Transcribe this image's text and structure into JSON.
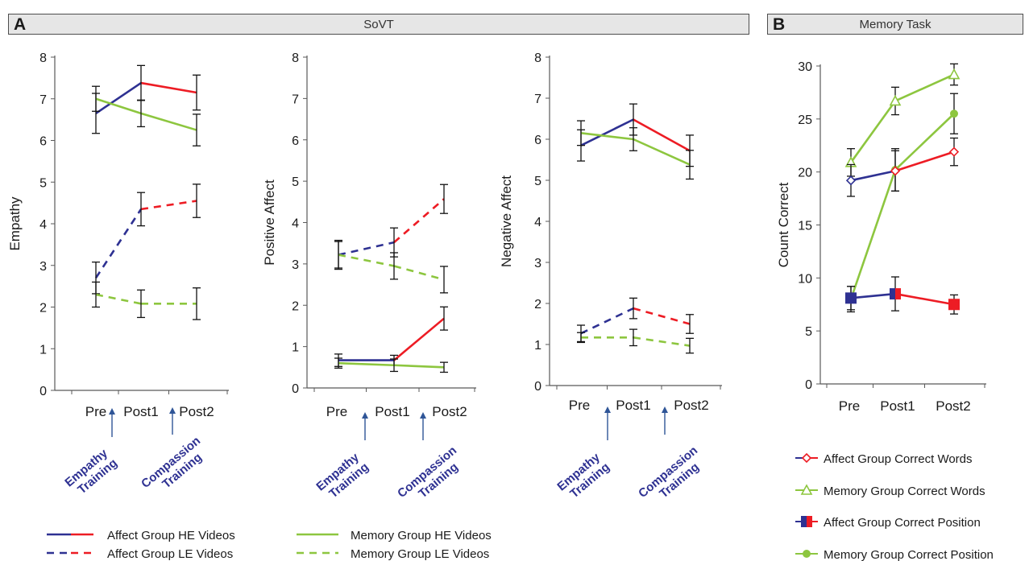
{
  "panels": {
    "a": {
      "letter": "A",
      "title": "SoVT"
    },
    "b": {
      "letter": "B",
      "title": "Memory Task"
    }
  },
  "training_labels": {
    "empathy": [
      "Empathy",
      "Training"
    ],
    "compassion": [
      "Compassion",
      "Training"
    ]
  },
  "colors": {
    "affect_pre": "#2e3192",
    "affect_post": "#ed1c24",
    "memory": "#8dc63f",
    "training_text": "#2e3192",
    "arrow": "#2f5597"
  },
  "chart_data": [
    {
      "id": "empathy",
      "type": "line",
      "ylabel": "Empathy",
      "ylim": [
        0,
        8
      ],
      "yticks": [
        0,
        1,
        2,
        3,
        4,
        5,
        6,
        7,
        8
      ],
      "categories": [
        "Pre",
        "Post1",
        "Post2"
      ],
      "series": [
        {
          "name": "Affect Group HE Videos",
          "values": [
            6.65,
            7.38,
            7.15
          ],
          "errors": [
            0.48,
            0.42,
            0.42
          ],
          "style": "solid",
          "group": "affect"
        },
        {
          "name": "Memory Group HE Videos",
          "values": [
            7.0,
            6.65,
            6.25
          ],
          "errors": [
            0.3,
            0.32,
            0.38
          ],
          "style": "solid",
          "group": "memory"
        },
        {
          "name": "Affect Group LE Videos",
          "values": [
            2.7,
            4.35,
            4.55
          ],
          "errors": [
            0.38,
            0.4,
            0.4
          ],
          "style": "dashed",
          "group": "affect"
        },
        {
          "name": "Memory Group LE Videos",
          "values": [
            2.3,
            2.08,
            2.08
          ],
          "errors": [
            0.3,
            0.33,
            0.38
          ],
          "style": "dashed",
          "group": "memory"
        }
      ]
    },
    {
      "id": "positive",
      "type": "line",
      "ylabel": "Positive Affect",
      "ylim": [
        0,
        8
      ],
      "yticks": [
        0,
        1,
        2,
        3,
        4,
        5,
        6,
        7,
        8
      ],
      "categories": [
        "Pre",
        "Post1",
        "Post2"
      ],
      "series": [
        {
          "name": "Affect Group LE Videos",
          "values": [
            3.22,
            3.52,
            4.57
          ],
          "errors": [
            0.35,
            0.35,
            0.35
          ],
          "style": "dashed",
          "group": "affect"
        },
        {
          "name": "Memory Group LE Videos",
          "values": [
            3.22,
            2.95,
            2.62
          ],
          "errors": [
            0.32,
            0.32,
            0.32
          ],
          "style": "dashed",
          "group": "memory"
        },
        {
          "name": "Affect Group HE Videos",
          "values": [
            0.67,
            0.67,
            1.68
          ],
          "errors": [
            0.15,
            0.12,
            0.28
          ],
          "style": "solid",
          "group": "affect"
        },
        {
          "name": "Memory Group HE Videos",
          "values": [
            0.6,
            0.55,
            0.5
          ],
          "errors": [
            0.12,
            0.15,
            0.12
          ],
          "style": "solid",
          "group": "memory"
        }
      ]
    },
    {
      "id": "negative",
      "type": "line",
      "ylabel": "Negative Affect",
      "ylim": [
        0,
        8
      ],
      "yticks": [
        0,
        1,
        2,
        3,
        4,
        5,
        6,
        7,
        8
      ],
      "categories": [
        "Pre",
        "Post1",
        "Post2"
      ],
      "series": [
        {
          "name": "Affect Group HE Videos",
          "values": [
            5.85,
            6.48,
            5.72
          ],
          "errors": [
            0.38,
            0.38,
            0.38
          ],
          "style": "solid",
          "group": "affect"
        },
        {
          "name": "Memory Group HE Videos",
          "values": [
            6.15,
            6.0,
            5.38
          ],
          "errors": [
            0.3,
            0.28,
            0.35
          ],
          "style": "solid",
          "group": "memory"
        },
        {
          "name": "Affect Group LE Videos",
          "values": [
            1.27,
            1.88,
            1.5
          ],
          "errors": [
            0.2,
            0.25,
            0.23
          ],
          "style": "dashed",
          "group": "affect"
        },
        {
          "name": "Memory Group LE Videos",
          "values": [
            1.17,
            1.17,
            0.97
          ],
          "errors": [
            0.12,
            0.2,
            0.18
          ],
          "style": "dashed",
          "group": "memory"
        }
      ]
    },
    {
      "id": "memory",
      "type": "line",
      "ylabel": "Count Correct",
      "ylim": [
        0,
        30
      ],
      "yticks": [
        0,
        5,
        10,
        15,
        20,
        25,
        30
      ],
      "categories": [
        "Pre",
        "Post1",
        "Post2"
      ],
      "series": [
        {
          "name": "Memory Group Correct Words",
          "values": [
            20.9,
            26.7,
            29.2
          ],
          "errors": [
            1.3,
            1.3,
            1.0
          ],
          "marker": "triangle",
          "group": "memory"
        },
        {
          "name": "Memory Group Correct Position",
          "values": [
            8.0,
            20.2,
            25.5
          ],
          "errors": [
            1.2,
            2.0,
            1.9
          ],
          "marker": "circle",
          "group": "memory"
        },
        {
          "name": "Affect Group Correct Words",
          "values": [
            19.2,
            20.1,
            21.9
          ],
          "errors": [
            1.5,
            1.9,
            1.3
          ],
          "marker": "diamond",
          "group": "affect"
        },
        {
          "name": "Affect Group Correct Position",
          "values": [
            8.1,
            8.5,
            7.5
          ],
          "errors": [
            1.1,
            1.6,
            0.9
          ],
          "marker": "square",
          "group": "affect"
        }
      ]
    }
  ],
  "legend_a": [
    {
      "label": "Affect Group HE Videos",
      "group": "affect",
      "style": "solid"
    },
    {
      "label": "Affect Group LE Videos",
      "group": "affect",
      "style": "dashed"
    },
    {
      "label": "Memory Group HE Videos",
      "group": "memory",
      "style": "solid"
    },
    {
      "label": "Memory Group LE Videos",
      "group": "memory",
      "style": "dashed"
    }
  ],
  "legend_b": [
    {
      "label": "Affect Group Correct Words",
      "marker": "diamond",
      "group": "affect"
    },
    {
      "label": "Memory Group Correct Words",
      "marker": "triangle",
      "group": "memory"
    },
    {
      "label": "Affect Group Correct Position",
      "marker": "square",
      "group": "affect"
    },
    {
      "label": "Memory Group Correct Position",
      "marker": "circle",
      "group": "memory"
    }
  ]
}
